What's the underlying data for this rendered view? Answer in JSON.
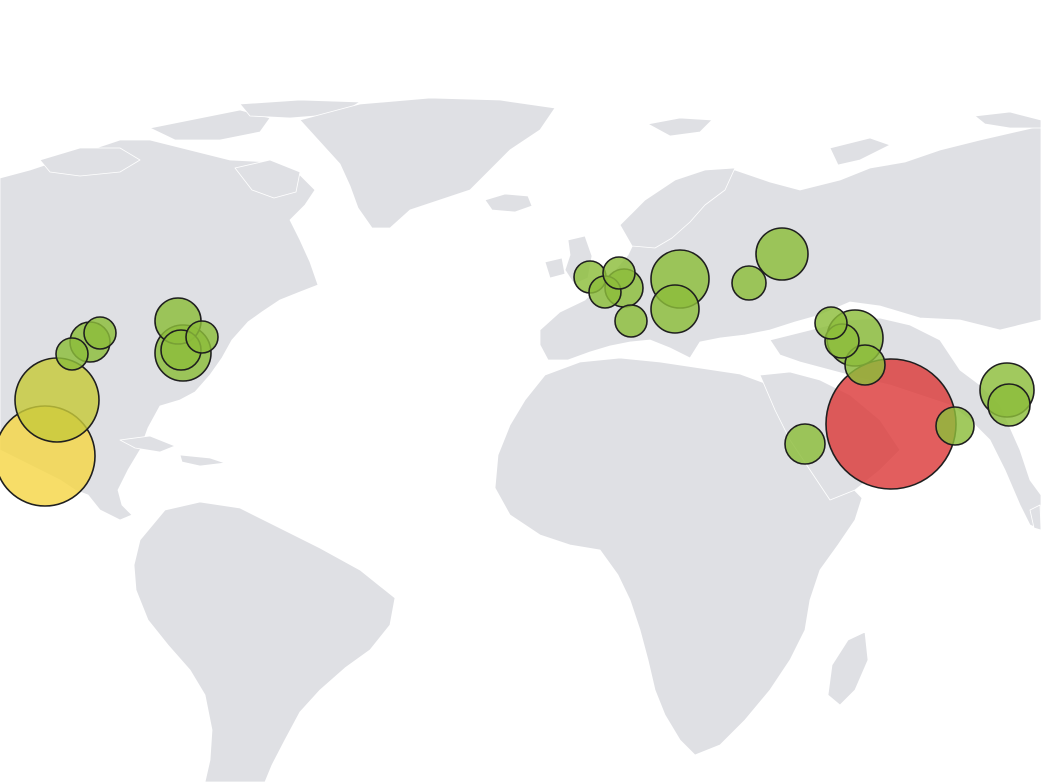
{
  "map": {
    "land_color": "#dfe0e4",
    "ocean_color": "#ffffff",
    "bubble_outline_color": "#1f1f1f"
  },
  "bubbles": [
    {
      "id": "us-west-la",
      "color": "#f5d547"
    },
    {
      "id": "us-west-sf",
      "color": "#c7c93a"
    },
    {
      "id": "us-west-seattle-a",
      "color": "#8cbd3a"
    },
    {
      "id": "us-west-seattle-b",
      "color": "#8cbd3a"
    },
    {
      "id": "us-west-portland",
      "color": "#8cbd3a"
    },
    {
      "id": "us-east-toronto",
      "color": "#8cbd3a"
    },
    {
      "id": "us-east-ny",
      "color": "#8cbd3a"
    },
    {
      "id": "us-east-dc",
      "color": "#8cbd3a"
    },
    {
      "id": "us-east-boston",
      "color": "#8cbd3a"
    },
    {
      "id": "eu-london",
      "color": "#8cbd3a"
    },
    {
      "id": "eu-paris",
      "color": "#8cbd3a"
    },
    {
      "id": "eu-amsterdam",
      "color": "#8cbd3a"
    },
    {
      "id": "eu-frankfurt",
      "color": "#8cbd3a"
    },
    {
      "id": "eu-milan",
      "color": "#8cbd3a"
    },
    {
      "id": "eu-warsaw",
      "color": "#8cbd3a"
    },
    {
      "id": "eu-vienna",
      "color": "#8cbd3a"
    },
    {
      "id": "eu-kyiv",
      "color": "#8cbd3a"
    },
    {
      "id": "eu-moscow",
      "color": "#8cbd3a"
    },
    {
      "id": "me-tehran",
      "color": "#8cbd3a"
    },
    {
      "id": "me-tehran-b",
      "color": "#8cbd3a"
    },
    {
      "id": "me-tabriz",
      "color": "#8cbd3a"
    },
    {
      "id": "me-baghdad",
      "color": "#8cbd3a"
    },
    {
      "id": "me-jeddah",
      "color": "#8cbd3a"
    },
    {
      "id": "me-gulf",
      "color": "#dc3b3b"
    },
    {
      "id": "me-karachi",
      "color": "#8cbd3a"
    },
    {
      "id": "asia-delhi",
      "color": "#8cbd3a"
    },
    {
      "id": "asia-delhi-b",
      "color": "#8cbd3a"
    }
  ]
}
